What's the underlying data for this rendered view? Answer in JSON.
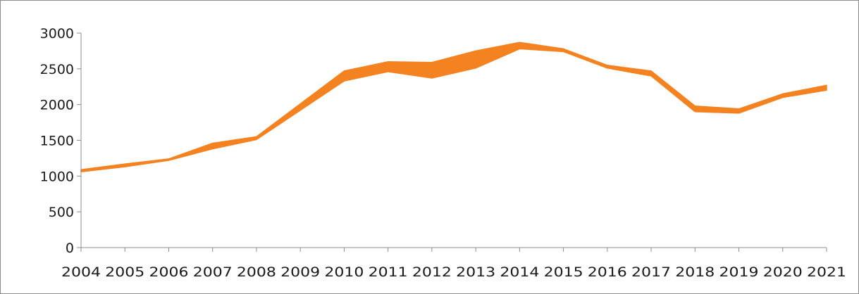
{
  "chart_data": {
    "type": "area",
    "title": "",
    "xlabel": "",
    "ylabel": "",
    "categories": [
      "2004",
      "2005",
      "2006",
      "2007",
      "2008",
      "2009",
      "2010",
      "2011",
      "2012",
      "2013",
      "2014",
      "2015",
      "2016",
      "2017",
      "2018",
      "2019",
      "2020",
      "2021"
    ],
    "series": [
      {
        "role": "lower",
        "values": [
          1060,
          1130,
          1220,
          1380,
          1510,
          1920,
          2330,
          2460,
          2370,
          2510,
          2780,
          2740,
          2510,
          2400,
          1900,
          1880,
          2100,
          2200
        ]
      },
      {
        "role": "upper",
        "values": [
          1090,
          1170,
          1240,
          1460,
          1550,
          2010,
          2470,
          2600,
          2590,
          2750,
          2870,
          2780,
          2550,
          2470,
          1980,
          1940,
          2150,
          2270
        ]
      }
    ],
    "ylim": [
      0,
      3000
    ],
    "yticks": [
      0,
      500,
      1000,
      1500,
      2000,
      2500,
      3000
    ],
    "grid": false,
    "legend": "none",
    "fill_color": "#f58220"
  }
}
